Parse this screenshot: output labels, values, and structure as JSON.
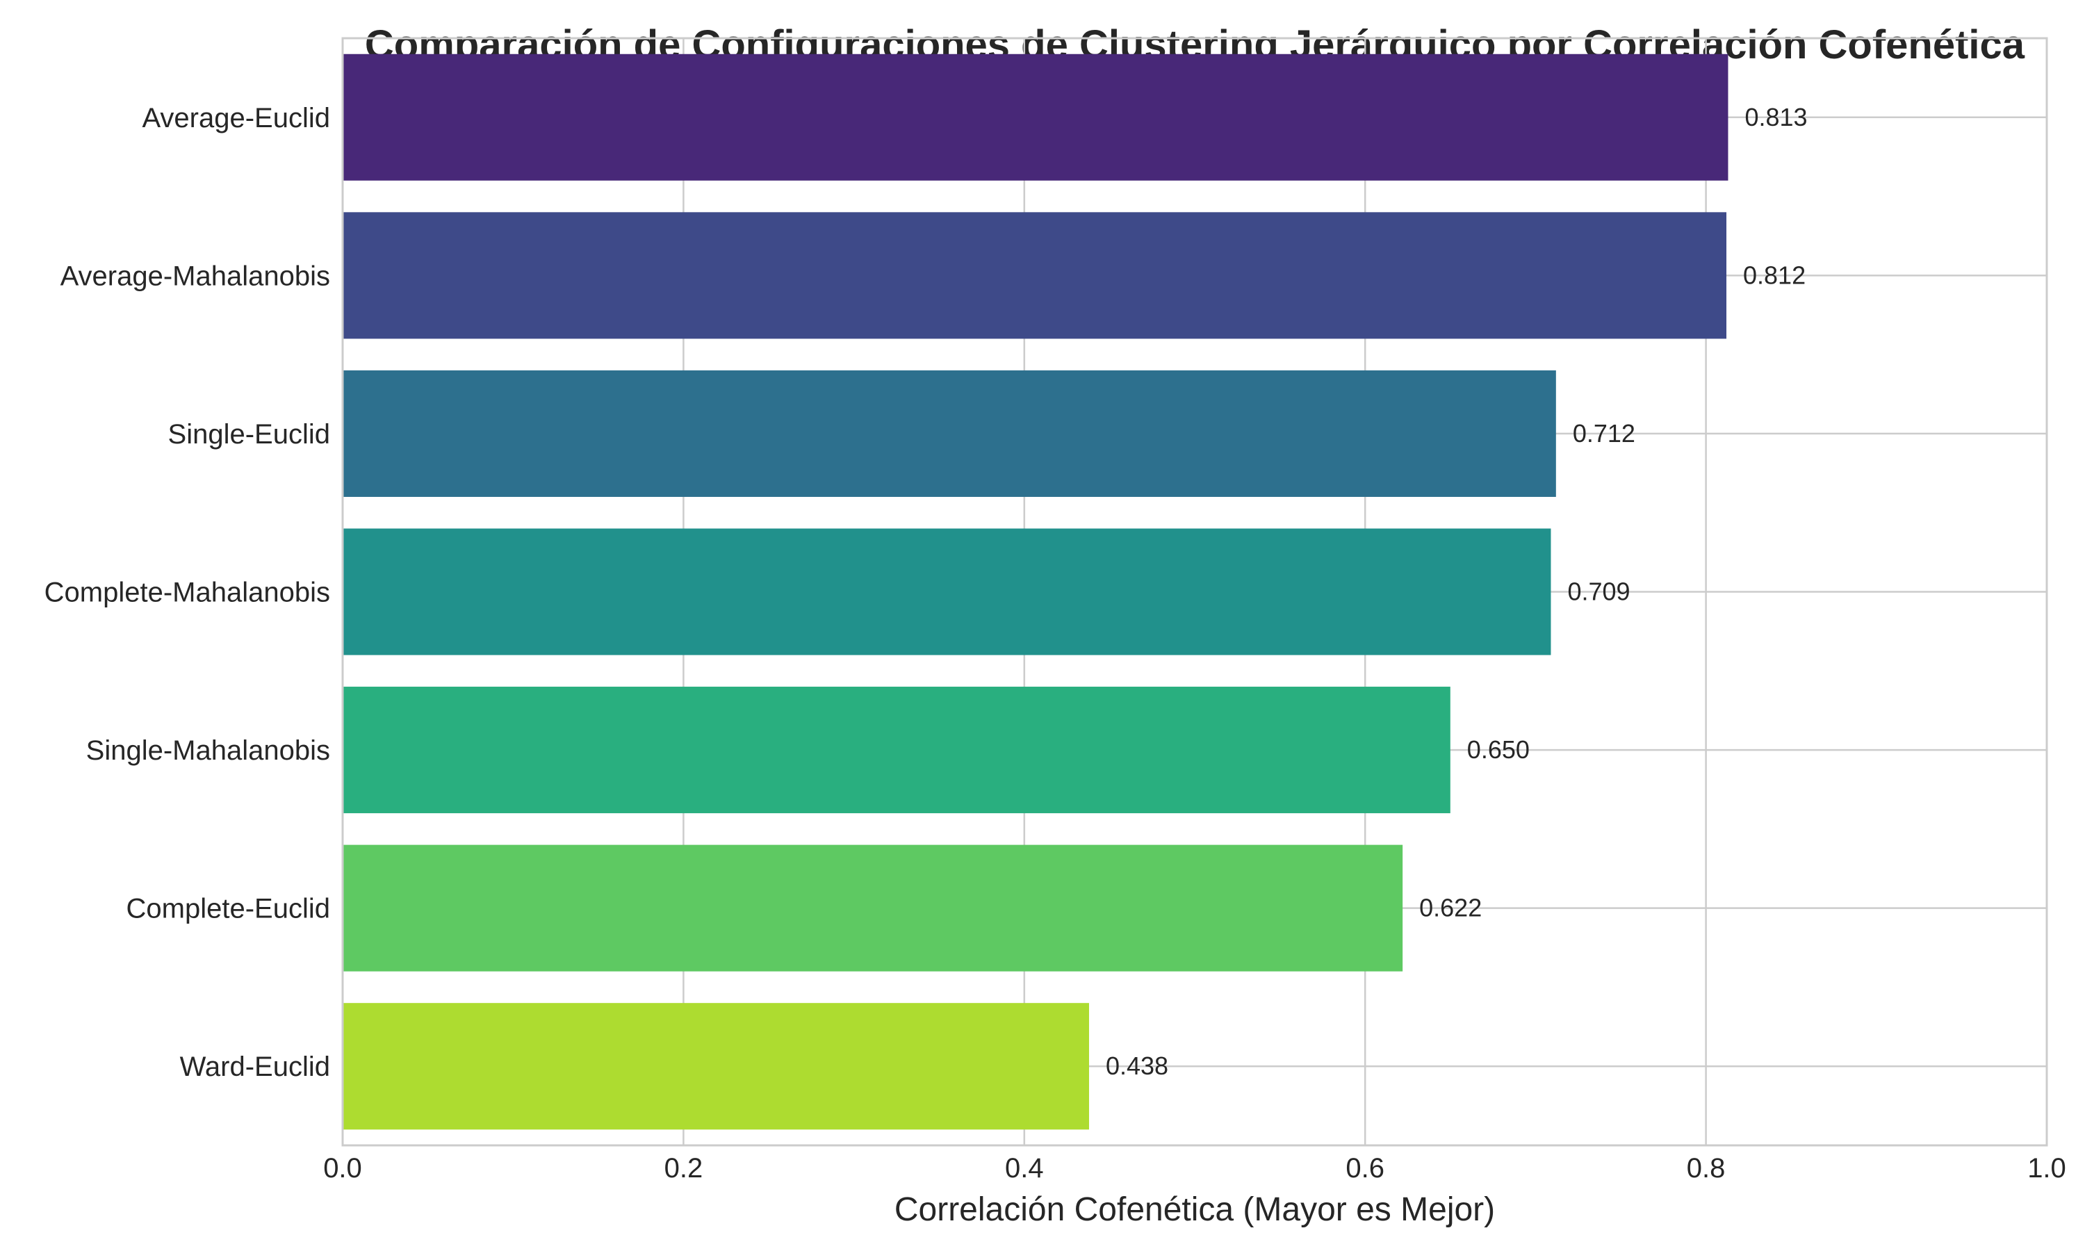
{
  "chart_data": {
    "type": "bar",
    "orientation": "horizontal",
    "title": "Comparación de Configuraciones de Clustering Jerárquico por Correlación Cofenética",
    "xlabel": "Correlación Cofenética (Mayor es Mejor)",
    "ylabel": "",
    "xlim": [
      0.0,
      1.0
    ],
    "x_ticks": [
      "0.0",
      "0.2",
      "0.4",
      "0.6",
      "0.8",
      "1.0"
    ],
    "x_tick_values": [
      0.0,
      0.2,
      0.4,
      0.6,
      0.8,
      1.0
    ],
    "grid": true,
    "categories": [
      "Average-Euclid",
      "Average-Mahalanobis",
      "Single-Euclid",
      "Complete-Mahalanobis",
      "Single-Mahalanobis",
      "Complete-Euclid",
      "Ward-Euclid"
    ],
    "values": [
      0.813,
      0.812,
      0.712,
      0.709,
      0.65,
      0.622,
      0.438
    ],
    "value_labels": [
      "0.813",
      "0.812",
      "0.712",
      "0.709",
      "0.650",
      "0.622",
      "0.438"
    ],
    "colors": [
      "#482878",
      "#3e4a89",
      "#2d708e",
      "#21918c",
      "#29af7f",
      "#5ec962",
      "#addc30"
    ]
  }
}
